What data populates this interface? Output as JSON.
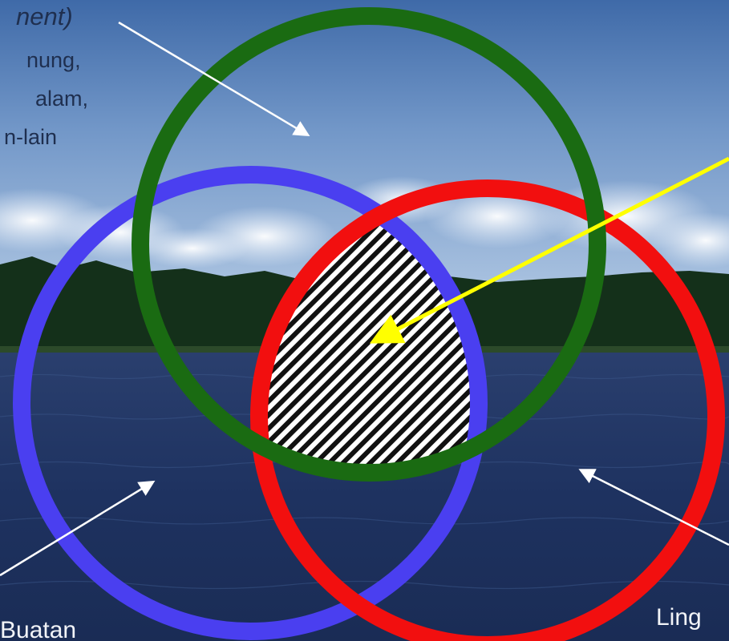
{
  "labels": {
    "natural_env": {
      "line1": "nent)",
      "line2": "nung,",
      "line3": "alam,",
      "line4": "n-lain"
    },
    "built_env": "Buatan",
    "social_env": "Ling"
  },
  "circles": [
    {
      "name": "natural",
      "color": "#1a6b12"
    },
    {
      "name": "built",
      "color": "#4a3ff0"
    },
    {
      "name": "social",
      "color": "#f20f0f"
    }
  ],
  "colors": {
    "arrow_white": "#ffffff",
    "arrow_yellow": "#ffff00",
    "hatch_light": "#ffffff",
    "hatch_dark": "#111111"
  }
}
